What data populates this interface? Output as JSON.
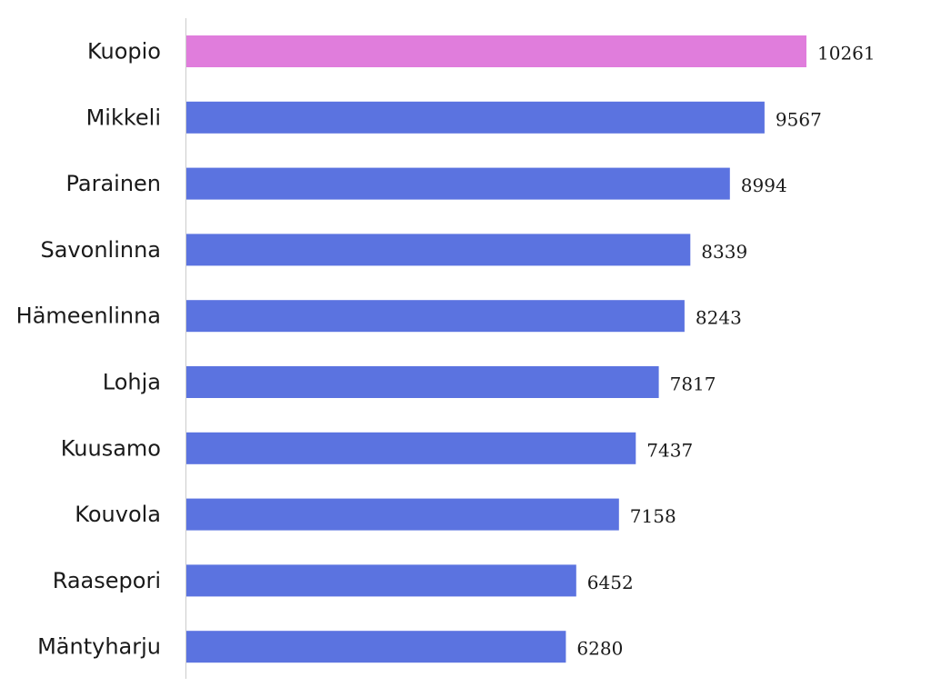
{
  "chart_data": {
    "type": "bar",
    "orientation": "horizontal",
    "title": "",
    "xlabel": "",
    "ylabel": "",
    "categories": [
      "Kuopio",
      "Mikkeli",
      "Parainen",
      "Savonlinna",
      "Hämeenlinna",
      "Lohja",
      "Kuusamo",
      "Kouvola",
      "Raasepori",
      "Mäntyharju"
    ],
    "values": [
      10261,
      9567,
      8994,
      8339,
      8243,
      7817,
      7437,
      7158,
      6452,
      6280
    ],
    "value_labels": [
      "10261",
      "9567",
      "8994",
      "8339",
      "8243",
      "7817",
      "7437",
      "7158",
      "6452",
      "6280"
    ],
    "highlight_index": 0,
    "colors": {
      "highlight": "#e07ddc",
      "default": "#5b73e0",
      "axis": "#cccccc"
    },
    "xlim": [
      0,
      10261
    ],
    "grid": false,
    "legend": "none"
  }
}
